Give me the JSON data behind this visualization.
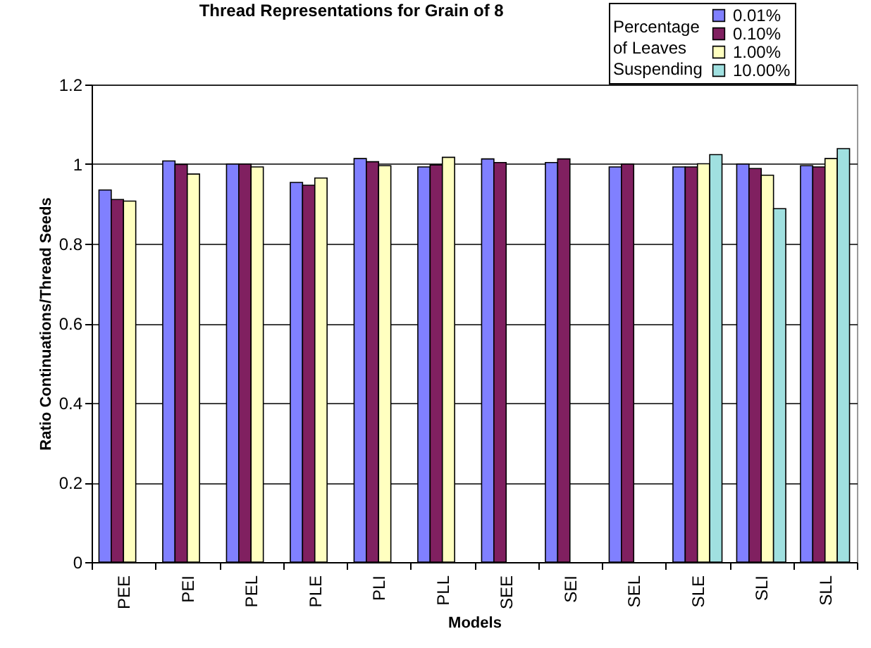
{
  "chart_data": {
    "type": "bar",
    "title": "Thread Representations for Grain of 8",
    "xlabel": "Models",
    "ylabel": "Ratio Continuations/Thread Seeds",
    "legend_title": "Percentage of Leaves Suspending",
    "legend": "top right",
    "grid": "y",
    "categories": [
      "PEE",
      "PEI",
      "PEL",
      "PLE",
      "PLI",
      "PLL",
      "SEE",
      "SEI",
      "SEL",
      "SLE",
      "SLI",
      "SLL"
    ],
    "ylim": [
      0,
      1.2
    ],
    "yticks": [
      0,
      0.2,
      0.4,
      0.6,
      0.8,
      1,
      1.2
    ],
    "series": [
      {
        "name": "0.01%",
        "color": "#8080ff",
        "values": [
          0.935,
          1.008,
          1.0,
          0.954,
          1.014,
          0.993,
          1.013,
          1.004,
          0.993,
          0.993,
          1.0,
          0.996
        ]
      },
      {
        "name": "0.10%",
        "color": "#802060",
        "values": [
          0.911,
          0.999,
          1.0,
          0.947,
          1.006,
          0.998,
          1.004,
          1.013,
          1.0,
          0.993,
          0.989,
          0.993
        ]
      },
      {
        "name": "1.00%",
        "color": "#ffffc0",
        "values": [
          0.907,
          0.975,
          0.993,
          0.965,
          0.996,
          1.017,
          null,
          null,
          null,
          1.001,
          0.972,
          1.014
        ]
      },
      {
        "name": "10.00%",
        "color": "#a0e0e0",
        "values": [
          null,
          null,
          null,
          null,
          null,
          null,
          null,
          null,
          null,
          1.024,
          0.888,
          1.039
        ]
      }
    ]
  }
}
